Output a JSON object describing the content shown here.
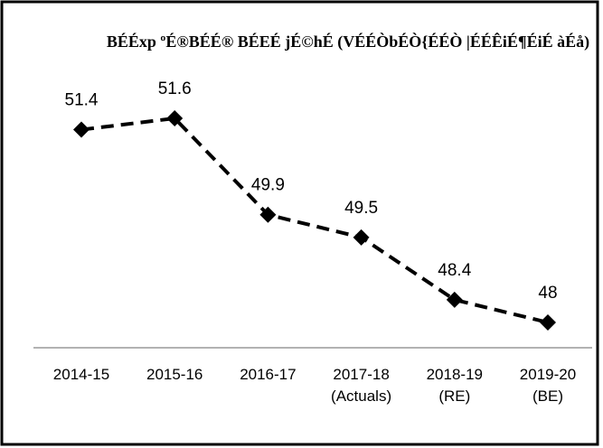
{
  "chart_data": {
    "type": "line",
    "title": "BÉÉxp ºÉ®BÉÉ® BÉEÉ jÉ©hÉ (VÉÉÒbÉÒ{ÉÉÒ |ÉÉÊiÉ¶ÉiÉ àÉå)",
    "categories": [
      "2014-15",
      "2015-16",
      "2016-17",
      "2017-18\n(Actuals)",
      "2018-19\n(RE)",
      "2019-20\n(BE)"
    ],
    "series": [
      {
        "name": null,
        "color": "#000000",
        "values": [
          51.4,
          51.6,
          49.9,
          49.5,
          48.4,
          48
        ]
      }
    ]
  }
}
